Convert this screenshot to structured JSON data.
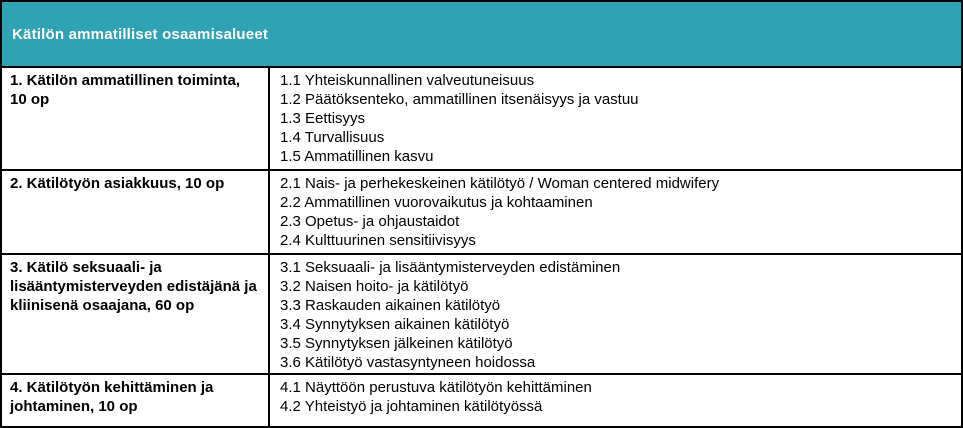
{
  "header": {
    "title": "Kätilön ammatilliset osaamisalueet",
    "bg_color": "#2fa2b3",
    "text_color": "#ffffff"
  },
  "table": {
    "border_color": "#000000",
    "rows": [
      {
        "title": "1. Kätilön ammatillinen toiminta, 10 op",
        "items": [
          "1.1 Yhteiskunnallinen valveutuneisuus",
          "1.2 Päätöksenteko, ammatillinen itsenäisyys ja vastuu",
          "1.3 Eettisyys",
          "1.4 Turvallisuus",
          "1.5 Ammatillinen kasvu"
        ]
      },
      {
        "title": "2. Kätilötyön asiakkuus, 10 op",
        "items": [
          "2.1 Nais- ja perhekeskeinen kätilötyö / Woman centered midwifery",
          "2.2 Ammatillinen vuorovaikutus ja kohtaaminen",
          "2.3 Opetus- ja ohjaustaidot",
          "2.4 Kulttuurinen sensitiivisyys"
        ]
      },
      {
        "title": "3. Kätilö seksuaali- ja lisääntymisterveyden edistäjänä ja kliinisenä osaajana, 60 op",
        "items": [
          "3.1 Seksuaali- ja lisääntymisterveyden edistäminen",
          "3.2 Naisen hoito- ja kätilötyö",
          "3.3 Raskauden aikainen kätilötyö",
          "3.4 Synnytyksen aikainen kätilötyö",
          "3.5 Synnytyksen jälkeinen kätilötyö",
          "3.6 Kätilötyö vastasyntyneen hoidossa"
        ]
      },
      {
        "title": "4. Kätilötyön kehittäminen ja johtaminen, 10 op",
        "items": [
          "4.1 Näyttöön perustuva kätilötyön kehittäminen",
          "4.2 Yhteistyö ja johtaminen kätilötyössä"
        ]
      }
    ]
  }
}
